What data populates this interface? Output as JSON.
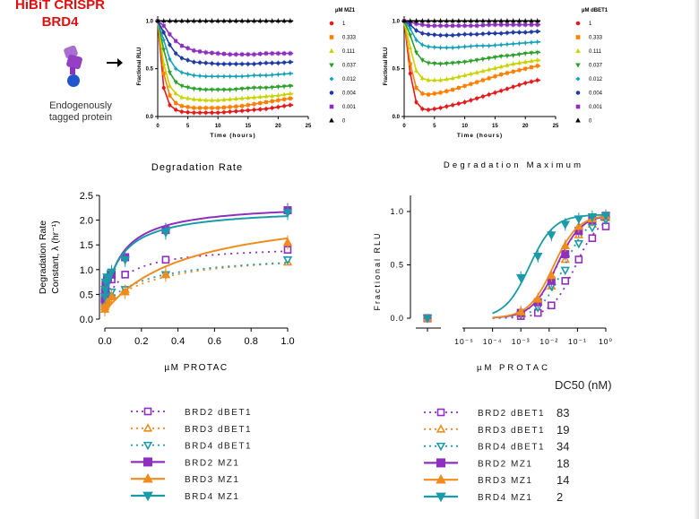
{
  "header": {
    "title_line1": "HiBiT CRISPR",
    "title_line2": "BRD4",
    "caption_line1": "Endogenously",
    "caption_line2": "tagged protein"
  },
  "legend_top_left": {
    "title": "µM MZ1",
    "items": [
      "1",
      "0.333",
      "0.111",
      "0.037",
      "0.012",
      "0.004",
      "0.001",
      "0"
    ]
  },
  "legend_top_right": {
    "title": "µM dBET1",
    "items": [
      "1",
      "0.333",
      "0.111",
      "0.037",
      "0.012",
      "0.004",
      "0.001",
      "0"
    ]
  },
  "legend_bottom_left": {
    "items": [
      "BRD2 dBET1",
      "BRD3 dBET1",
      "BRD4 dBET1",
      "BRD2 MZ1",
      "BRD3 MZ1",
      "BRD4 MZ1"
    ]
  },
  "legend_bottom_right": {
    "dc50_header": "DC50 (nM)",
    "items": [
      "BRD2 dBET1",
      "BRD3 dBET1",
      "BRD4 dBET1",
      "BRD2 MZ1",
      "BRD3 MZ1",
      "BRD4 MZ1"
    ],
    "dc50_values": [
      "83",
      "19",
      "34",
      "18",
      "14",
      "2"
    ]
  },
  "colors": {
    "title_red": "#e01010",
    "brd2": "#8e2fbf",
    "brd3": "#f08c1c",
    "brd4": "#1a9ba8",
    "kin_1": "#e41a1c",
    "kin_0333": "#ff7f00",
    "kin_0111": "#c8d400",
    "kin_0037": "#2ca02c",
    "kin_0012": "#17a2b8",
    "kin_0004": "#1f3aa6",
    "kin_0001": "#8e2fbf",
    "kin_0": "#000000"
  },
  "chart_data": [
    {
      "type": "line",
      "panel": "MZ1 kinetics",
      "xlabel": "Time (hours)",
      "ylabel": "Fractional RLU",
      "xlim": [
        0,
        25
      ],
      "ylim": [
        0,
        1.05
      ],
      "xticks": [
        "0",
        "5",
        "10",
        "15",
        "20",
        "25"
      ],
      "yticks": [
        "0.0",
        "0.5",
        "1.0"
      ],
      "x": [
        0,
        1,
        2,
        3,
        4,
        6,
        8,
        10,
        12,
        14,
        16,
        18,
        20,
        22
      ],
      "series": [
        {
          "name": "1",
          "values": [
            1.0,
            0.3,
            0.12,
            0.07,
            0.05,
            0.04,
            0.04,
            0.04,
            0.05,
            0.06,
            0.07,
            0.08,
            0.1,
            0.12
          ]
        },
        {
          "name": "0.333",
          "values": [
            1.0,
            0.45,
            0.22,
            0.14,
            0.11,
            0.09,
            0.09,
            0.09,
            0.1,
            0.11,
            0.13,
            0.15,
            0.17,
            0.19
          ]
        },
        {
          "name": "0.111",
          "values": [
            1.0,
            0.55,
            0.32,
            0.24,
            0.2,
            0.18,
            0.17,
            0.17,
            0.18,
            0.19,
            0.2,
            0.21,
            0.22,
            0.24
          ]
        },
        {
          "name": "0.037",
          "values": [
            1.0,
            0.7,
            0.46,
            0.36,
            0.32,
            0.29,
            0.28,
            0.28,
            0.28,
            0.29,
            0.3,
            0.3,
            0.31,
            0.32
          ]
        },
        {
          "name": "0.012",
          "values": [
            1.0,
            0.8,
            0.6,
            0.5,
            0.46,
            0.43,
            0.42,
            0.42,
            0.42,
            0.42,
            0.43,
            0.43,
            0.44,
            0.45
          ]
        },
        {
          "name": "0.004",
          "values": [
            1.0,
            0.88,
            0.75,
            0.66,
            0.61,
            0.57,
            0.56,
            0.55,
            0.55,
            0.55,
            0.55,
            0.56,
            0.56,
            0.57
          ]
        },
        {
          "name": "0.001",
          "values": [
            1.0,
            0.95,
            0.86,
            0.79,
            0.74,
            0.69,
            0.67,
            0.66,
            0.65,
            0.65,
            0.65,
            0.66,
            0.66,
            0.66
          ]
        },
        {
          "name": "0",
          "values": [
            1.0,
            1.0,
            1.0,
            1.0,
            1.0,
            1.0,
            1.0,
            1.0,
            1.0,
            1.0,
            1.0,
            1.0,
            1.0,
            1.0
          ]
        }
      ]
    },
    {
      "type": "line",
      "panel": "dBET1 kinetics",
      "xlabel": "Time (hours)",
      "ylabel": "Fractional RLU",
      "xlim": [
        0,
        25
      ],
      "ylim": [
        0,
        1.05
      ],
      "xticks": [
        "0",
        "5",
        "10",
        "15",
        "20",
        "25"
      ],
      "yticks": [
        "0.0",
        "0.5",
        "1.0"
      ],
      "x": [
        0,
        1,
        2,
        3,
        4,
        6,
        8,
        10,
        12,
        14,
        16,
        18,
        20,
        22
      ],
      "series": [
        {
          "name": "1",
          "values": [
            1.0,
            0.45,
            0.15,
            0.08,
            0.07,
            0.09,
            0.12,
            0.15,
            0.19,
            0.23,
            0.27,
            0.31,
            0.35,
            0.38
          ]
        },
        {
          "name": "0.333",
          "values": [
            1.0,
            0.55,
            0.3,
            0.24,
            0.23,
            0.25,
            0.28,
            0.32,
            0.36,
            0.4,
            0.44,
            0.47,
            0.5,
            0.53
          ]
        },
        {
          "name": "0.111",
          "values": [
            1.0,
            0.72,
            0.48,
            0.4,
            0.38,
            0.38,
            0.4,
            0.43,
            0.46,
            0.49,
            0.52,
            0.55,
            0.57,
            0.59
          ]
        },
        {
          "name": "0.037",
          "values": [
            1.0,
            0.85,
            0.67,
            0.59,
            0.56,
            0.55,
            0.56,
            0.57,
            0.59,
            0.61,
            0.63,
            0.64,
            0.66,
            0.67
          ]
        },
        {
          "name": "0.012",
          "values": [
            1.0,
            0.92,
            0.8,
            0.75,
            0.73,
            0.72,
            0.72,
            0.73,
            0.74,
            0.74,
            0.75,
            0.76,
            0.77,
            0.78
          ]
        },
        {
          "name": "0.004",
          "values": [
            1.0,
            0.96,
            0.9,
            0.87,
            0.86,
            0.85,
            0.85,
            0.86,
            0.86,
            0.87,
            0.87,
            0.88,
            0.88,
            0.89
          ]
        },
        {
          "name": "0.001",
          "values": [
            1.0,
            0.99,
            0.97,
            0.96,
            0.95,
            0.95,
            0.95,
            0.95,
            0.95,
            0.96,
            0.96,
            0.96,
            0.96,
            0.96
          ]
        },
        {
          "name": "0",
          "values": [
            1.0,
            1.0,
            1.0,
            1.0,
            1.0,
            1.0,
            1.0,
            1.0,
            1.0,
            1.0,
            1.0,
            1.0,
            1.0,
            1.0
          ]
        }
      ]
    },
    {
      "type": "scatter",
      "panel": "Degradation Rate",
      "title": "Degradation Rate",
      "xlabel": "µM PROTAC",
      "ylabel_line1": "Degradation Rate",
      "ylabel_line2": "Constant, λ (hr⁻¹)",
      "xlim": [
        0,
        1.0
      ],
      "ylim": [
        0,
        2.5
      ],
      "xticks": [
        "0.0",
        "0.2",
        "0.4",
        "0.6",
        "0.8",
        "1.0"
      ],
      "yticks": [
        "0.0",
        "0.5",
        "1.0",
        "1.5",
        "2.0",
        "2.5"
      ],
      "x": [
        0,
        0.001,
        0.004,
        0.012,
        0.037,
        0.111,
        0.333,
        1.0
      ],
      "series": [
        {
          "name": "BRD2 dBET1",
          "values": [
            0.3,
            0.35,
            0.45,
            0.55,
            0.8,
            0.9,
            1.2,
            1.4
          ],
          "fit_vmax": 1.5,
          "fit_k": 0.12,
          "fit_y0": 0.3
        },
        {
          "name": "BRD3 dBET1",
          "values": [
            0.25,
            0.3,
            0.35,
            0.4,
            0.5,
            0.6,
            0.9,
            1.15
          ],
          "fit_vmax": 1.4,
          "fit_k": 0.3,
          "fit_y0": 0.25
        },
        {
          "name": "BRD4 dBET1",
          "values": [
            0.3,
            0.35,
            0.4,
            0.45,
            0.55,
            0.6,
            0.9,
            1.2
          ],
          "fit_vmax": 1.35,
          "fit_k": 0.25,
          "fit_y0": 0.3
        },
        {
          "name": "BRD2 MZ1",
          "values": [
            0.4,
            0.55,
            0.7,
            0.8,
            0.9,
            1.25,
            1.8,
            2.2
          ],
          "fit_vmax": 2.35,
          "fit_k": 0.1,
          "fit_y0": 0.35
        },
        {
          "name": "BRD3 MZ1",
          "values": [
            0.2,
            0.25,
            0.3,
            0.35,
            0.45,
            0.55,
            0.9,
            1.55
          ],
          "fit_vmax": 2.3,
          "fit_k": 0.45,
          "fit_y0": 0.15
        },
        {
          "name": "BRD4 MZ1",
          "values": [
            0.45,
            0.6,
            0.75,
            0.85,
            0.95,
            1.2,
            1.75,
            2.15
          ],
          "fit_vmax": 2.25,
          "fit_k": 0.1,
          "fit_y0": 0.4
        }
      ]
    },
    {
      "type": "scatter",
      "panel": "Degradation Maximum",
      "title": "Degradation Maximum",
      "xlabel": "µM PROTAC",
      "ylabel": "Fractional RLU",
      "xscale": "log",
      "xlim": [
        1e-05,
        1
      ],
      "ylim": [
        0,
        1.05
      ],
      "xticks": [
        "10⁻⁵",
        "10⁻⁴",
        "10⁻³",
        "10⁻²",
        "10⁻¹",
        "10⁰"
      ],
      "yticks": [
        "0.0",
        "0.5",
        "1.0"
      ],
      "x_zero_value": 0,
      "x": [
        0.001,
        0.004,
        0.012,
        0.037,
        0.111,
        0.333,
        1.0
      ],
      "series": [
        {
          "name": "BRD2 dBET1",
          "zero_value": 0.0,
          "values": [
            0.02,
            0.05,
            0.12,
            0.35,
            0.55,
            0.75,
            0.86
          ],
          "dc50_nM": 83
        },
        {
          "name": "BRD3 dBET1",
          "zero_value": 0.0,
          "values": [
            0.04,
            0.15,
            0.3,
            0.55,
            0.78,
            0.88,
            0.94
          ],
          "dc50_nM": 19
        },
        {
          "name": "BRD4 dBET1",
          "zero_value": 0.0,
          "values": [
            0.03,
            0.1,
            0.3,
            0.45,
            0.7,
            0.85,
            0.92
          ],
          "dc50_nM": 34
        },
        {
          "name": "BRD2 MZ1",
          "zero_value": 0.0,
          "values": [
            0.05,
            0.15,
            0.35,
            0.6,
            0.82,
            0.92,
            0.96
          ],
          "dc50_nM": 18
        },
        {
          "name": "BRD3 MZ1",
          "zero_value": 0.0,
          "values": [
            0.06,
            0.18,
            0.4,
            0.68,
            0.86,
            0.93,
            0.96
          ],
          "dc50_nM": 14
        },
        {
          "name": "BRD4 MZ1",
          "zero_value": 0.0,
          "values": [
            0.38,
            0.58,
            0.78,
            0.88,
            0.93,
            0.95,
            0.96
          ],
          "dc50_nM": 2
        }
      ]
    }
  ]
}
